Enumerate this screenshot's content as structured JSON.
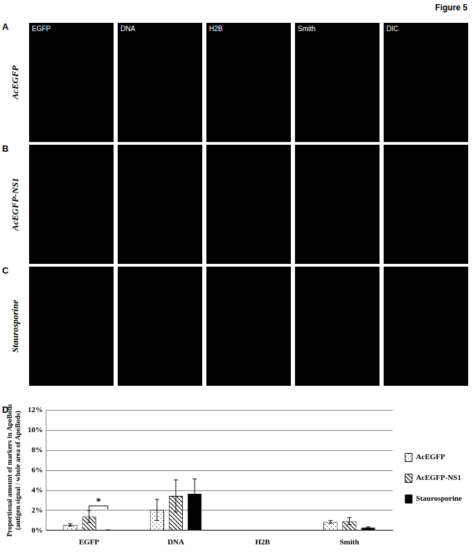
{
  "figure": {
    "title": "Figure 5",
    "panel_rows": [
      {
        "letter": "A",
        "label": "AcEGFP"
      },
      {
        "letter": "B",
        "label": "AcEGFP-NS1"
      },
      {
        "letter": "C",
        "label": "Staurosporine"
      }
    ],
    "columns": [
      "EGFP",
      "DNA",
      "H2B",
      "Smith",
      "DIC"
    ],
    "chart_letter": "D"
  },
  "chart_data": {
    "type": "bar",
    "y_label": "Proportional amount of markers in ApoBods (antigen signal / whole area of ApoBods)",
    "categories": [
      "EGFP",
      "DNA",
      "H2B",
      "Smith"
    ],
    "series": [
      {
        "name": "AcEGFP",
        "color": "#ffffff",
        "marker": "dots",
        "values": [
          0.55,
          2.05,
          0,
          0.85
        ],
        "errors": [
          0.12,
          1.05,
          0,
          0.15
        ]
      },
      {
        "name": "AcEGFP-NS1",
        "color": "#ffffff",
        "marker": "hatch",
        "values": [
          1.4,
          3.45,
          0,
          0.92
        ],
        "errors": [
          0.6,
          1.6,
          0,
          0.35
        ]
      },
      {
        "name": "Staurosporine",
        "color": "#000000",
        "marker": "solid",
        "values": [
          0.03,
          3.65,
          0,
          0.3
        ],
        "errors": [
          0.02,
          1.5,
          0,
          0.05
        ]
      }
    ],
    "ylim": [
      0,
      12
    ],
    "yticks": [
      {
        "value": 0,
        "label": "0%"
      },
      {
        "value": 2,
        "label": "2%"
      },
      {
        "value": 4,
        "label": "4%"
      },
      {
        "value": 6,
        "label": "6%"
      },
      {
        "value": 8,
        "label": "8%"
      },
      {
        "value": 10,
        "label": "10%"
      },
      {
        "value": 12,
        "label": "12%"
      }
    ],
    "grid": true,
    "legend": "right",
    "annotations": [
      {
        "text": "*",
        "category": "EGFP",
        "between": [
          "AcEGFP-NS1",
          "Staurosporine"
        ],
        "y": 2.45
      }
    ]
  }
}
